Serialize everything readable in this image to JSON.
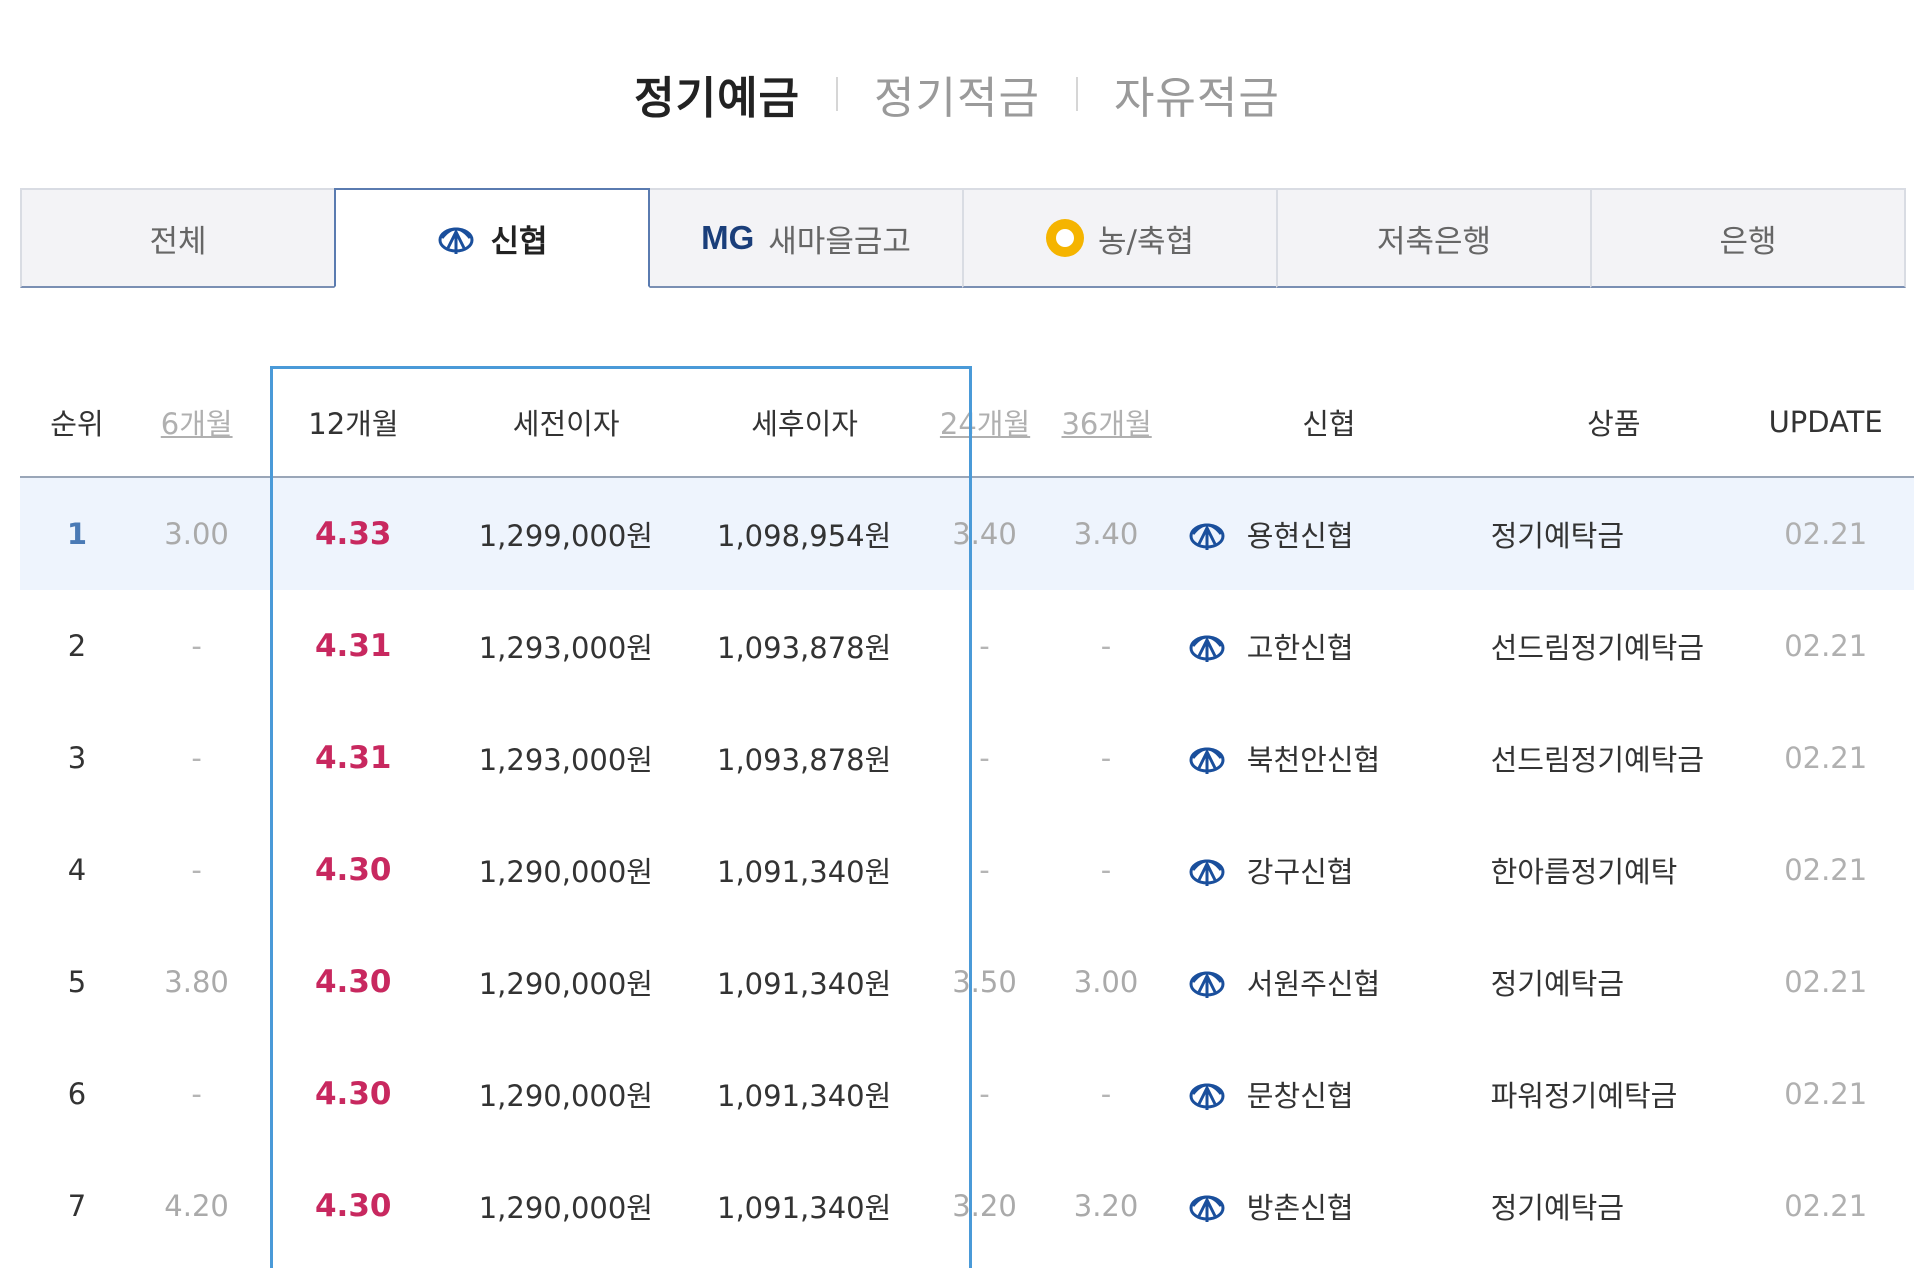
{
  "product_tabs": [
    {
      "label": "정기예금",
      "active": true
    },
    {
      "label": "정기적금",
      "active": false
    },
    {
      "label": "자유적금",
      "active": false
    }
  ],
  "category_tabs": [
    {
      "label": "전체",
      "icon": "",
      "active": false
    },
    {
      "label": "신협",
      "icon": "shinhyup-logo-icon",
      "active": true
    },
    {
      "label": "새마을금고",
      "icon": "mg-logo",
      "logo_text": "MG",
      "active": false
    },
    {
      "label": "농/축협",
      "icon": "nonghyup-logo-icon",
      "active": false
    },
    {
      "label": "저축은행",
      "icon": "",
      "active": false
    },
    {
      "label": "은행",
      "icon": "",
      "active": false
    }
  ],
  "table": {
    "headers": {
      "rank": "순위",
      "m6": "6개월",
      "m12": "12개월",
      "pre_tax": "세전이자",
      "post_tax": "세후이자",
      "m24": "24개월",
      "m36": "36개월",
      "bank": "신협",
      "product": "상품",
      "update": "UPDATE"
    },
    "rows": [
      {
        "rank": "1",
        "m6": "3.00",
        "m12": "4.33",
        "pre_tax": "1,299,000원",
        "post_tax": "1,098,954원",
        "m24": "3.40",
        "m36": "3.40",
        "bank": "용현신협",
        "product": "정기예탁금",
        "update": "02.21"
      },
      {
        "rank": "2",
        "m6": "-",
        "m12": "4.31",
        "pre_tax": "1,293,000원",
        "post_tax": "1,093,878원",
        "m24": "-",
        "m36": "-",
        "bank": "고한신협",
        "product": "선드림정기예탁금",
        "update": "02.21"
      },
      {
        "rank": "3",
        "m6": "-",
        "m12": "4.31",
        "pre_tax": "1,293,000원",
        "post_tax": "1,093,878원",
        "m24": "-",
        "m36": "-",
        "bank": "북천안신협",
        "product": "선드림정기예탁금",
        "update": "02.21"
      },
      {
        "rank": "4",
        "m6": "-",
        "m12": "4.30",
        "pre_tax": "1,290,000원",
        "post_tax": "1,091,340원",
        "m24": "-",
        "m36": "-",
        "bank": "강구신협",
        "product": "한아름정기예탁",
        "update": "02.21"
      },
      {
        "rank": "5",
        "m6": "3.80",
        "m12": "4.30",
        "pre_tax": "1,290,000원",
        "post_tax": "1,091,340원",
        "m24": "3.50",
        "m36": "3.00",
        "bank": "서원주신협",
        "product": "정기예탁금",
        "update": "02.21"
      },
      {
        "rank": "6",
        "m6": "-",
        "m12": "4.30",
        "pre_tax": "1,290,000원",
        "post_tax": "1,091,340원",
        "m24": "-",
        "m36": "-",
        "bank": "문창신협",
        "product": "파워정기예탁금",
        "update": "02.21"
      },
      {
        "rank": "7",
        "m6": "4.20",
        "m12": "4.30",
        "pre_tax": "1,290,000원",
        "post_tax": "1,091,340원",
        "m24": "3.20",
        "m36": "3.20",
        "bank": "방촌신협",
        "product": "정기예탁금",
        "update": "02.21"
      }
    ]
  },
  "colors": {
    "rate_highlight": "#c8285f",
    "column_frame": "#4a9ad8",
    "row_highlight_bg": "#eef4fd",
    "brand_blue": "#1a4f9c"
  }
}
